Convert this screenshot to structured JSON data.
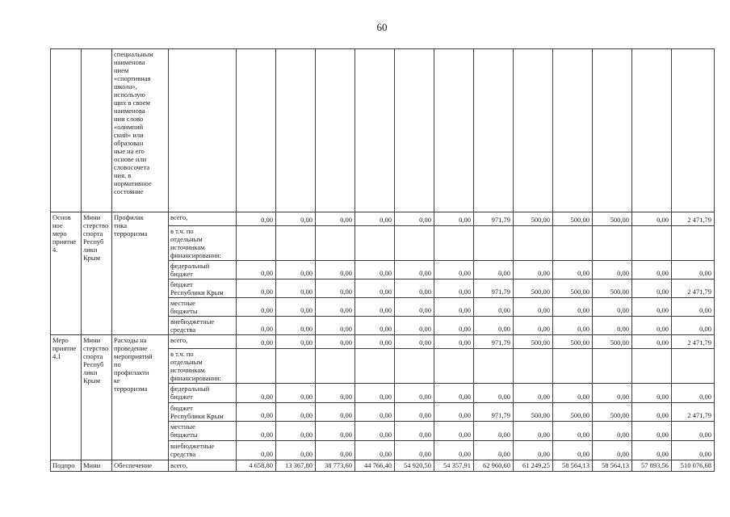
{
  "page_number": "60",
  "table": {
    "row_groups": [
      {
        "col1": "",
        "col2": "",
        "col3": "специальным\nнаименова\nнием\n«спортивная\nшкола»,\nиспользую\nщих в своем\nнаименова\nнии слово\n«олимпий\nский» или\nобразован\nные на его\nоснове или\nсловосочета\nния, в\nнормативное\nсостояние",
        "rows": [
          {
            "label": "",
            "values": [
              "",
              "",
              "",
              "",
              "",
              "",
              "",
              "",
              "",
              "",
              "",
              ""
            ]
          }
        ]
      },
      {
        "col1": "Основ\nное\nмеро\nприятие\n4.",
        "col2": "Мини\nстерство\nспорта\nРеспуб\nлики\nКрым",
        "col3": "Профилак\nтика\nтерроризма",
        "rows": [
          {
            "label": "всего,",
            "values": [
              "0,00",
              "0,00",
              "0,00",
              "0,00",
              "0,00",
              "0,00",
              "971,79",
              "500,00",
              "500,00",
              "500,00",
              "0,00",
              "2 471,79"
            ]
          },
          {
            "label": "в т.ч. по\nотдельным\nисточникам\nфинансирования:",
            "values": [
              "",
              "",
              "",
              "",
              "",
              "",
              "",
              "",
              "",
              "",
              "",
              ""
            ]
          },
          {
            "label": "федеральный\nбюджет",
            "values": [
              "0,00",
              "0,00",
              "0,00",
              "0,00",
              "0,00",
              "0,00",
              "0,00",
              "0,00",
              "0,00",
              "0,00",
              "0,00",
              "0,00"
            ]
          },
          {
            "label": "бюджет\nРеспублики Крым",
            "values": [
              "0,00",
              "0,00",
              "0,00",
              "0,00",
              "0,00",
              "0,00",
              "971,79",
              "500,00",
              "500,00",
              "500,00",
              "0,00",
              "2 471,79"
            ]
          },
          {
            "label": "местные\nбюджеты",
            "values": [
              "0,00",
              "0,00",
              "0,00",
              "0,00",
              "0,00",
              "0,00",
              "0,00",
              "0,00",
              "0,00",
              "0,00",
              "0,00",
              "0,00"
            ]
          },
          {
            "label": "внебюджетные\nсредства",
            "values": [
              "0,00",
              "0,00",
              "0,00",
              "0,00",
              "0,00",
              "0,00",
              "0,00",
              "0,00",
              "0,00",
              "0,00",
              "0,00",
              "0,00"
            ]
          }
        ]
      },
      {
        "col1": "Меро\nприятие\n4.1",
        "col2": "Мини\nстерство\nспорта\nРеспуб\nлики\nКрым",
        "col3": "Расходы на\nпроведение\nмероприятий\nпо\nпрофилакти\nке\nтерроризма",
        "rows": [
          {
            "label": "всего,",
            "values": [
              "0,00",
              "0,00",
              "0,00",
              "0,00",
              "0,00",
              "0,00",
              "971,79",
              "500,00",
              "500,00",
              "500,00",
              "0,00",
              "2 471,79"
            ]
          },
          {
            "label": "в т.ч. по\nотдельным\nисточникам\nфинансирования:",
            "values": [
              "",
              "",
              "",
              "",
              "",
              "",
              "",
              "",
              "",
              "",
              "",
              ""
            ]
          },
          {
            "label": "федеральный\nбюджет",
            "values": [
              "0,00",
              "0,00",
              "0,00",
              "0,00",
              "0,00",
              "0,00",
              "0,00",
              "0,00",
              "0,00",
              "0,00",
              "0,00",
              "0,00"
            ]
          },
          {
            "label": "бюджет\nРеспублики Крым",
            "values": [
              "0,00",
              "0,00",
              "0,00",
              "0,00",
              "0,00",
              "0,00",
              "971,79",
              "500,00",
              "500,00",
              "500,00",
              "0,00",
              "2 471,79"
            ]
          },
          {
            "label": "местные\nбюджеты",
            "values": [
              "0,00",
              "0,00",
              "0,00",
              "0,00",
              "0,00",
              "0,00",
              "0,00",
              "0,00",
              "0,00",
              "0,00",
              "0,00",
              "0,00"
            ]
          },
          {
            "label": "внебюджетные\nсредства",
            "values": [
              "0,00",
              "0,00",
              "0,00",
              "0,00",
              "0,00",
              "0,00",
              "0,00",
              "0,00",
              "0,00",
              "0,00",
              "0,00",
              "0,00"
            ]
          }
        ]
      },
      {
        "col1": "Подпро",
        "col2": "Мини",
        "col3": "Обеспечение",
        "rows": [
          {
            "label": "всего,",
            "values": [
              "4 658,80",
              "13 367,80",
              "38 773,60",
              "44 766,40",
              "54 920,50",
              "54 357,91",
              "62 960,60",
              "61 249,25",
              "58 564,13",
              "58 564,13",
              "57 893,56",
              "510 076,68"
            ]
          }
        ]
      }
    ]
  }
}
